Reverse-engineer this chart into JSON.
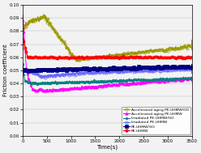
{
  "title": "",
  "xlabel": "Time(s)",
  "ylabel": "Friction coefficient",
  "xlim": [
    0,
    3500
  ],
  "ylim": [
    0.0,
    0.1
  ],
  "yticks": [
    0.0,
    0.01,
    0.02,
    0.03,
    0.04,
    0.05,
    0.06,
    0.07,
    0.08,
    0.09,
    0.1
  ],
  "xticks": [
    0,
    500,
    1000,
    1500,
    2000,
    2500,
    3000,
    3500
  ],
  "series": [
    {
      "label": "Accelerated aging PE-UHMW/GO",
      "color": "#999900",
      "marker": "o",
      "markerfacecolor": "none",
      "linewidth": 0.7,
      "markersize": 2.2,
      "markevery": 25
    },
    {
      "label": "Accelerated aging PE-UHMW",
      "color": "#ff00ff",
      "marker": "^",
      "markerfacecolor": "#ff00ff",
      "linewidth": 0.7,
      "markersize": 2.2,
      "markevery": 25
    },
    {
      "label": "Irradiated PE-UHMW/GO",
      "color": "#008080",
      "marker": "*",
      "markerfacecolor": "#008080",
      "linewidth": 0.7,
      "markersize": 2.5,
      "markevery": 25
    },
    {
      "label": "Irradiated PE-UHMW",
      "color": "#6666ff",
      "marker": "o",
      "markerfacecolor": "none",
      "linewidth": 0.7,
      "markersize": 2.2,
      "markevery": 25
    },
    {
      "label": "PE-UHMW/GO",
      "color": "#000080",
      "marker": "s",
      "markerfacecolor": "#000080",
      "linewidth": 0.7,
      "markersize": 2.2,
      "markevery": 25
    },
    {
      "label": "PE-UHMW",
      "color": "#ff0000",
      "marker": "o",
      "markerfacecolor": "#ff0000",
      "linewidth": 0.7,
      "markersize": 2.2,
      "markevery": 25
    }
  ],
  "background_color": "#f2f2f2",
  "figsize": [
    2.48,
    1.89
  ],
  "dpi": 100
}
